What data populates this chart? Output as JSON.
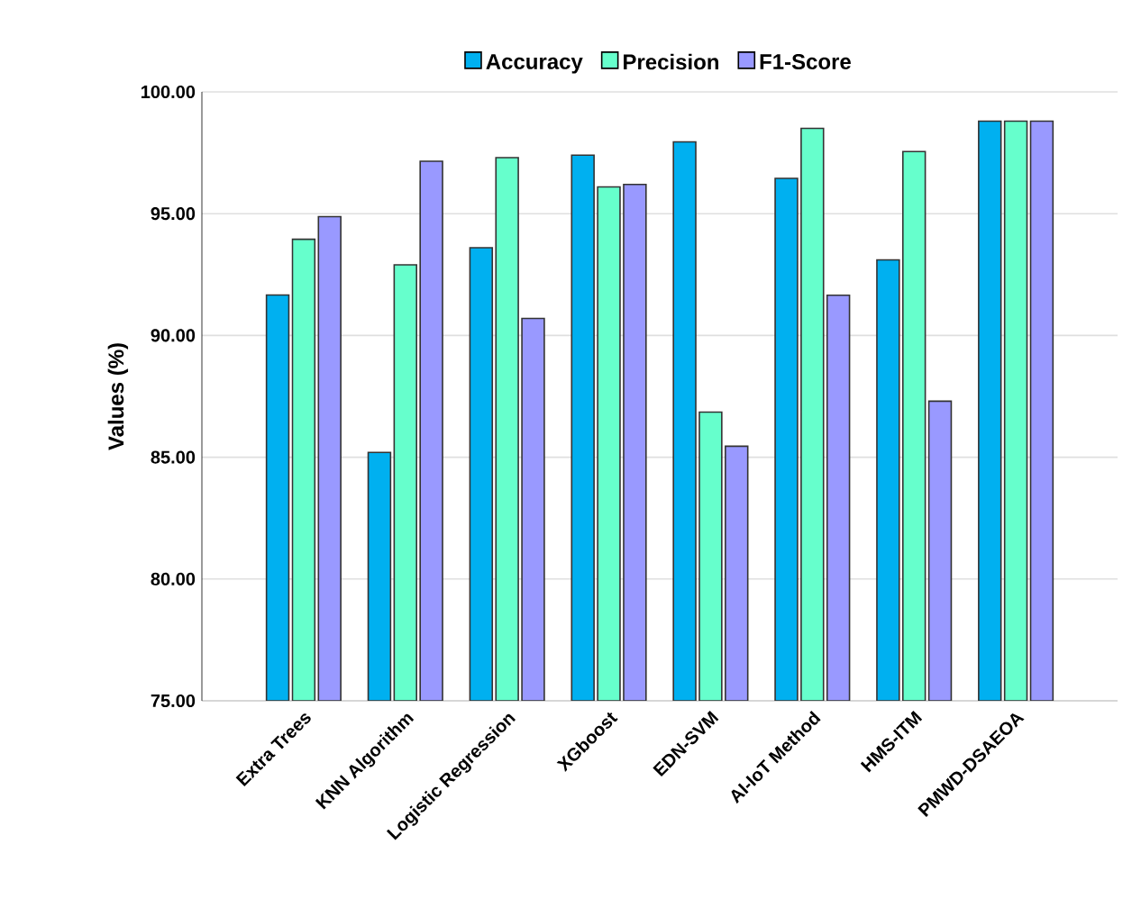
{
  "chart_data": {
    "type": "bar",
    "ylabel": "Values (%)",
    "categories": [
      "Extra Trees",
      "KNN Algorithm",
      "Logistic Regression",
      "XGboost",
      "EDN-SVM",
      "AI-IoT Method",
      "HMS-ITM",
      "PMWD-DSAEOA"
    ],
    "series": [
      {
        "name": "Accuracy",
        "color": "#00b0f0",
        "values": [
          91.66,
          85.2,
          93.6,
          97.4,
          97.95,
          96.45,
          93.1,
          98.8
        ]
      },
      {
        "name": "Precision",
        "color": "#66ffcc",
        "values": [
          93.95,
          92.9,
          97.3,
          96.1,
          86.85,
          98.5,
          97.55,
          98.8
        ]
      },
      {
        "name": "F1-Score",
        "color": "#9999ff",
        "values": [
          94.88,
          97.15,
          90.7,
          96.2,
          85.45,
          91.65,
          87.3,
          98.8
        ]
      }
    ],
    "ylim": [
      75,
      100
    ],
    "yticks": [
      {
        "value": 75,
        "label": "75.00"
      },
      {
        "value": 80,
        "label": "80.00"
      },
      {
        "value": 85,
        "label": "85.00"
      },
      {
        "value": 90,
        "label": "90.00"
      },
      {
        "value": 95,
        "label": "95.00"
      },
      {
        "value": 100,
        "label": "100.00"
      }
    ],
    "grid": "y",
    "legend": "top"
  }
}
